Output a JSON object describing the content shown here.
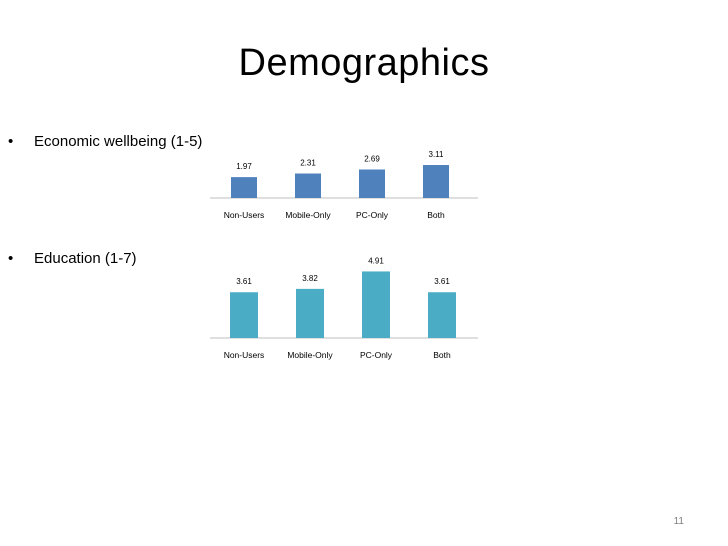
{
  "title": "Demographics",
  "bullets": [
    {
      "symbol": "•",
      "text": "Economic wellbeing (1-5)"
    },
    {
      "symbol": "•",
      "text": "Education (1-7)"
    }
  ],
  "page_number": "11",
  "chart_data": [
    {
      "type": "bar",
      "categories": [
        "Non-Users",
        "Mobile-Only",
        "PC-Only",
        "Both"
      ],
      "values": [
        1.97,
        2.31,
        2.69,
        3.11
      ],
      "data_labels": [
        "1.97",
        "2.31",
        "2.69",
        "3.11"
      ],
      "ylim": [
        0,
        5
      ],
      "grid": false,
      "color": "#4f81bd"
    },
    {
      "type": "bar",
      "categories": [
        "Non-Users",
        "Mobile-Only",
        "PC-Only",
        "Both"
      ],
      "values": [
        3.61,
        3.82,
        4.91,
        3.61
      ],
      "data_labels": [
        "3.61",
        "3.82",
        "4.91",
        "3.61"
      ],
      "ylim": [
        0,
        7
      ],
      "grid": false,
      "color": "#4bacc6"
    }
  ]
}
